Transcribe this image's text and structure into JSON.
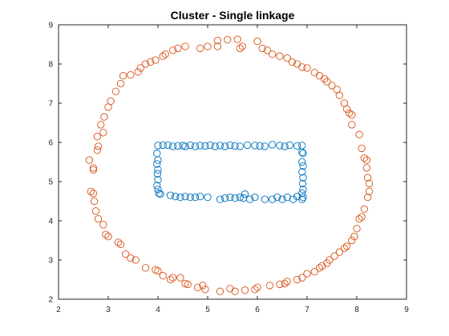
{
  "chart_data": {
    "type": "scatter",
    "title": "Cluster - Single linkage",
    "xlabel": "",
    "ylabel": "",
    "xlim": [
      2,
      9
    ],
    "ylim": [
      2,
      9
    ],
    "xticks": [
      2,
      3,
      4,
      5,
      6,
      7,
      8,
      9
    ],
    "yticks": [
      2,
      3,
      4,
      5,
      6,
      7,
      8,
      9
    ],
    "grid": false,
    "marker": "open-circle",
    "series": [
      {
        "color": "#0072BD",
        "points": [
          [
            4.0,
            5.92
          ],
          [
            4.1,
            5.93
          ],
          [
            4.2,
            5.93
          ],
          [
            4.3,
            5.9
          ],
          [
            4.4,
            5.91
          ],
          [
            4.5,
            5.92
          ],
          [
            4.55,
            5.9
          ],
          [
            4.65,
            5.93
          ],
          [
            4.75,
            5.9
          ],
          [
            4.85,
            5.92
          ],
          [
            4.95,
            5.91
          ],
          [
            5.05,
            5.93
          ],
          [
            5.15,
            5.9
          ],
          [
            5.25,
            5.92
          ],
          [
            5.35,
            5.9
          ],
          [
            5.45,
            5.93
          ],
          [
            5.55,
            5.91
          ],
          [
            5.65,
            5.9
          ],
          [
            5.8,
            5.93
          ],
          [
            5.95,
            5.92
          ],
          [
            6.05,
            5.91
          ],
          [
            6.15,
            5.9
          ],
          [
            6.3,
            5.94
          ],
          [
            6.45,
            5.92
          ],
          [
            6.55,
            5.9
          ],
          [
            6.65,
            5.93
          ],
          [
            6.8,
            5.91
          ],
          [
            6.9,
            5.92
          ],
          [
            3.98,
            5.72
          ],
          [
            4.0,
            5.55
          ],
          [
            3.98,
            5.45
          ],
          [
            4.0,
            5.3
          ],
          [
            3.99,
            5.2
          ],
          [
            4.0,
            5.05
          ],
          [
            3.98,
            4.9
          ],
          [
            4.0,
            4.8
          ],
          [
            4.02,
            4.7
          ],
          [
            6.9,
            5.75
          ],
          [
            6.92,
            5.72
          ],
          [
            6.9,
            5.5
          ],
          [
            6.92,
            5.4
          ],
          [
            6.9,
            5.25
          ],
          [
            6.92,
            5.1
          ],
          [
            6.91,
            4.95
          ],
          [
            6.92,
            4.8
          ],
          [
            6.9,
            4.7
          ],
          [
            6.92,
            4.6
          ],
          [
            4.05,
            4.68
          ],
          [
            4.25,
            4.65
          ],
          [
            4.35,
            4.62
          ],
          [
            4.45,
            4.6
          ],
          [
            4.55,
            4.62
          ],
          [
            4.65,
            4.6
          ],
          [
            4.75,
            4.6
          ],
          [
            4.85,
            4.62
          ],
          [
            5.0,
            4.6
          ],
          [
            5.25,
            4.55
          ],
          [
            5.35,
            4.58
          ],
          [
            5.45,
            4.6
          ],
          [
            5.55,
            4.58
          ],
          [
            5.65,
            4.6
          ],
          [
            5.72,
            4.58
          ],
          [
            5.75,
            4.68
          ],
          [
            5.85,
            4.55
          ],
          [
            5.95,
            4.6
          ],
          [
            6.15,
            4.55
          ],
          [
            6.3,
            4.55
          ],
          [
            6.4,
            4.6
          ],
          [
            6.5,
            4.55
          ],
          [
            6.6,
            4.6
          ],
          [
            6.72,
            4.55
          ],
          [
            6.8,
            4.62
          ],
          [
            6.9,
            4.55
          ]
        ]
      },
      {
        "color": "#D95319",
        "points": [
          [
            5.2,
            8.6
          ],
          [
            5.4,
            8.62
          ],
          [
            5.6,
            8.63
          ],
          [
            5.2,
            8.45
          ],
          [
            5.7,
            8.45
          ],
          [
            5.65,
            8.4
          ],
          [
            5.0,
            8.45
          ],
          [
            4.85,
            8.4
          ],
          [
            6.0,
            8.58
          ],
          [
            6.1,
            8.4
          ],
          [
            6.2,
            8.35
          ],
          [
            6.3,
            8.25
          ],
          [
            6.45,
            8.2
          ],
          [
            6.6,
            8.15
          ],
          [
            6.7,
            8.05
          ],
          [
            6.8,
            8.0
          ],
          [
            6.9,
            7.92
          ],
          [
            7.0,
            7.9
          ],
          [
            7.15,
            7.78
          ],
          [
            7.25,
            7.7
          ],
          [
            7.35,
            7.62
          ],
          [
            7.4,
            7.55
          ],
          [
            7.5,
            7.45
          ],
          [
            7.6,
            7.35
          ],
          [
            7.65,
            7.2
          ],
          [
            7.75,
            7.0
          ],
          [
            7.8,
            6.85
          ],
          [
            7.85,
            6.75
          ],
          [
            7.9,
            6.7
          ],
          [
            7.9,
            6.45
          ],
          [
            8.05,
            6.2
          ],
          [
            8.1,
            5.85
          ],
          [
            8.15,
            5.6
          ],
          [
            8.2,
            5.55
          ],
          [
            8.2,
            5.35
          ],
          [
            8.22,
            5.1
          ],
          [
            8.25,
            4.95
          ],
          [
            8.25,
            4.75
          ],
          [
            8.22,
            4.6
          ],
          [
            8.15,
            4.3
          ],
          [
            8.1,
            4.1
          ],
          [
            8.05,
            4.05
          ],
          [
            8.0,
            3.8
          ],
          [
            7.95,
            3.6
          ],
          [
            7.9,
            3.5
          ],
          [
            7.8,
            3.35
          ],
          [
            7.75,
            3.3
          ],
          [
            7.65,
            3.2
          ],
          [
            7.55,
            3.1
          ],
          [
            7.45,
            3.0
          ],
          [
            7.4,
            2.92
          ],
          [
            7.3,
            2.85
          ],
          [
            7.25,
            2.8
          ],
          [
            7.15,
            2.7
          ],
          [
            7.0,
            2.65
          ],
          [
            6.9,
            2.55
          ],
          [
            6.8,
            2.5
          ],
          [
            6.6,
            2.45
          ],
          [
            6.55,
            2.4
          ],
          [
            6.45,
            2.38
          ],
          [
            6.25,
            2.35
          ],
          [
            6.0,
            2.3
          ],
          [
            5.95,
            2.25
          ],
          [
            5.75,
            2.23
          ],
          [
            5.55,
            2.2
          ],
          [
            5.45,
            2.27
          ],
          [
            5.25,
            2.2
          ],
          [
            4.95,
            2.25
          ],
          [
            4.9,
            2.35
          ],
          [
            4.8,
            2.3
          ],
          [
            4.6,
            2.38
          ],
          [
            4.55,
            2.4
          ],
          [
            4.45,
            2.55
          ],
          [
            4.3,
            2.55
          ],
          [
            4.25,
            2.5
          ],
          [
            4.1,
            2.6
          ],
          [
            4.0,
            2.72
          ],
          [
            3.95,
            2.75
          ],
          [
            3.75,
            2.8
          ],
          [
            3.55,
            3.0
          ],
          [
            3.45,
            3.05
          ],
          [
            3.35,
            3.15
          ],
          [
            3.25,
            3.4
          ],
          [
            3.2,
            3.45
          ],
          [
            3.0,
            3.6
          ],
          [
            2.95,
            3.65
          ],
          [
            2.9,
            3.9
          ],
          [
            2.8,
            4.05
          ],
          [
            2.75,
            4.25
          ],
          [
            2.72,
            4.5
          ],
          [
            2.7,
            4.7
          ],
          [
            2.65,
            4.75
          ],
          [
            2.7,
            5.3
          ],
          [
            2.7,
            5.35
          ],
          [
            2.62,
            5.55
          ],
          [
            2.78,
            5.8
          ],
          [
            2.8,
            5.9
          ],
          [
            2.78,
            6.15
          ],
          [
            2.9,
            6.25
          ],
          [
            2.85,
            6.45
          ],
          [
            2.92,
            6.65
          ],
          [
            3.0,
            6.9
          ],
          [
            3.05,
            7.05
          ],
          [
            3.15,
            7.3
          ],
          [
            3.25,
            7.5
          ],
          [
            3.3,
            7.7
          ],
          [
            3.45,
            7.72
          ],
          [
            3.6,
            7.8
          ],
          [
            3.65,
            7.9
          ],
          [
            3.75,
            8.0
          ],
          [
            3.85,
            8.05
          ],
          [
            3.95,
            8.1
          ],
          [
            4.1,
            8.2
          ],
          [
            4.15,
            8.25
          ],
          [
            4.3,
            8.35
          ],
          [
            4.4,
            8.4
          ],
          [
            4.55,
            8.45
          ]
        ]
      }
    ]
  }
}
